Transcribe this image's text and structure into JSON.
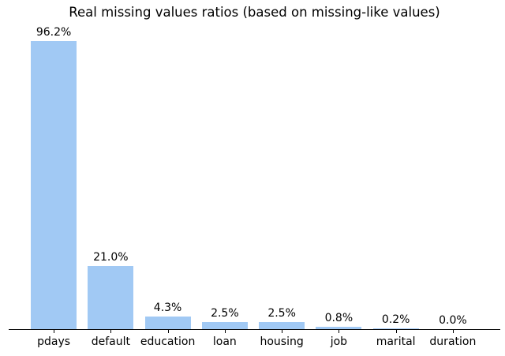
{
  "figure": {
    "background": "#ffffff"
  },
  "chart_data": {
    "type": "bar",
    "title": "Real missing values ratios (based on missing-like values)",
    "categories": [
      "pdays",
      "default",
      "education",
      "loan",
      "housing",
      "job",
      "marital",
      "duration"
    ],
    "values": [
      96.2,
      21.0,
      4.3,
      2.5,
      2.5,
      0.8,
      0.2,
      0.0
    ],
    "value_labels": [
      "96.2%",
      "21.0%",
      "4.3%",
      "2.5%",
      "2.5%",
      "0.8%",
      "0.2%",
      "0.0%"
    ],
    "xlabel": "",
    "ylabel": "",
    "ylim": [
      0,
      101
    ],
    "grid": false,
    "legend": null,
    "bar_color": "#a1c9f4",
    "axis_color": "#000000",
    "text_color": "#000000"
  }
}
